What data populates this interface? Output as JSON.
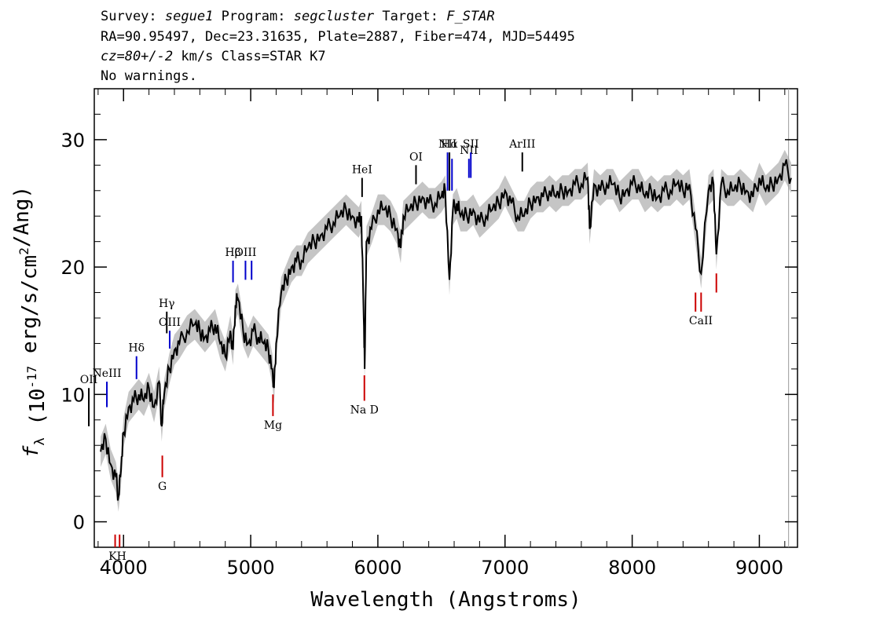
{
  "header": {
    "survey_label": "Survey:",
    "survey": "segue1",
    "program_label": "Program:",
    "program": "segcluster",
    "target_label": "Target:",
    "target": "F_STAR",
    "line2": "RA=90.95497, Dec=23.31635, Plate=2887, Fiber=474, MJD=54495",
    "cz": "cz=80+/-2",
    "cz_rest": " km/s Class=STAR K7",
    "line4": "No warnings."
  },
  "chart_data": {
    "type": "line",
    "xlabel": "Wavelength (Angstroms)",
    "ylabel": "f_λ (10^-17 erg/s/cm^2/Ang)",
    "xlim": [
      3770,
      9300
    ],
    "ylim": [
      -2,
      34
    ],
    "x_ticks": [
      4000,
      5000,
      6000,
      7000,
      8000,
      9000
    ],
    "y_ticks": [
      0,
      10,
      20,
      30
    ],
    "x": [
      3820,
      3860,
      3900,
      3940,
      3960,
      3980,
      4000,
      4040,
      4080,
      4120,
      4160,
      4200,
      4240,
      4280,
      4300,
      4320,
      4360,
      4400,
      4440,
      4500,
      4560,
      4600,
      4640,
      4680,
      4720,
      4760,
      4800,
      4840,
      4861,
      4880,
      4900,
      4940,
      4980,
      5020,
      5060,
      5100,
      5140,
      5170,
      5184,
      5200,
      5240,
      5280,
      5320,
      5360,
      5400,
      5450,
      5500,
      5550,
      5600,
      5650,
      5700,
      5750,
      5800,
      5850,
      5870,
      5889,
      5896,
      5910,
      5950,
      6000,
      6050,
      6100,
      6150,
      6180,
      6200,
      6250,
      6300,
      6350,
      6400,
      6450,
      6500,
      6530,
      6563,
      6590,
      6620,
      6650,
      6700,
      6750,
      6800,
      6850,
      6900,
      6950,
      7000,
      7050,
      7100,
      7150,
      7200,
      7250,
      7300,
      7350,
      7400,
      7450,
      7500,
      7550,
      7600,
      7650,
      7665,
      7700,
      7750,
      7800,
      7850,
      7900,
      7950,
      8000,
      8050,
      8100,
      8150,
      8200,
      8250,
      8300,
      8350,
      8400,
      8450,
      8498,
      8542,
      8600,
      8640,
      8662,
      8700,
      8750,
      8800,
      8850,
      8900,
      8950,
      9000,
      9050,
      9100,
      9150,
      9200,
      9250
    ],
    "y": [
      5.5,
      6.5,
      4.5,
      3.5,
      2.0,
      4.0,
      7.0,
      9.0,
      9.5,
      10.0,
      9.5,
      10.5,
      9.0,
      11.0,
      7.5,
      10.0,
      12.0,
      13.5,
      14.0,
      15.0,
      15.5,
      15.0,
      14.5,
      15.0,
      15.5,
      14.0,
      13.0,
      15.0,
      13.5,
      17.0,
      17.5,
      15.0,
      14.0,
      15.0,
      14.5,
      14.0,
      13.5,
      12.0,
      10.5,
      14.0,
      18.0,
      19.0,
      20.0,
      20.5,
      20.5,
      21.5,
      22.0,
      22.5,
      23.0,
      23.5,
      24.0,
      24.5,
      24.0,
      23.5,
      24.0,
      16.0,
      12.0,
      22.0,
      23.0,
      24.5,
      24.5,
      24.0,
      23.0,
      21.5,
      24.0,
      24.5,
      25.0,
      25.5,
      25.0,
      25.0,
      25.5,
      26.0,
      19.0,
      24.5,
      25.0,
      24.0,
      24.0,
      24.5,
      23.5,
      24.0,
      24.5,
      25.0,
      26.0,
      25.0,
      24.0,
      24.0,
      25.0,
      25.5,
      25.5,
      26.0,
      25.5,
      26.0,
      26.0,
      26.5,
      26.5,
      27.0,
      23.0,
      26.5,
      26.0,
      26.5,
      26.5,
      25.5,
      26.0,
      26.5,
      26.5,
      25.5,
      26.0,
      25.5,
      26.0,
      26.0,
      26.5,
      26.0,
      26.5,
      23.0,
      19.5,
      26.0,
      26.5,
      21.0,
      26.5,
      26.0,
      26.0,
      26.5,
      26.0,
      25.5,
      27.0,
      26.0,
      26.5,
      27.0,
      28.0,
      27.0
    ],
    "series_color": "#000000",
    "error_color": "#bbbbbb",
    "emission_lines": [
      {
        "label": "OII",
        "x": 3727,
        "y_top": 10.5,
        "y_bottom": 7.5,
        "color": "#000000"
      },
      {
        "label": "NeIII",
        "x": 3869,
        "y_top": 11.0,
        "y_bottom": 9.0,
        "color": "#0000cc"
      },
      {
        "label": "Hδ",
        "x": 4102,
        "y_top": 13.0,
        "y_bottom": 11.2,
        "color": "#0000cc"
      },
      {
        "label": "Hγ",
        "x": 4340,
        "y_top": 16.5,
        "y_bottom": 14.8,
        "color": "#000000"
      },
      {
        "label": "OIII",
        "x": 4363,
        "y_top": 15.0,
        "y_bottom": 13.6,
        "color": "#0000cc"
      },
      {
        "label": "Hβ",
        "x": 4861,
        "y_top": 20.5,
        "y_bottom": 18.8,
        "color": "#0000cc"
      },
      {
        "label": "OIII",
        "x": 4959,
        "y_top": 20.5,
        "y_bottom": 19.0,
        "color": "#0000cc"
      },
      {
        "label": "",
        "x": 5007,
        "y_top": 20.5,
        "y_bottom": 19.0,
        "color": "#0000cc"
      },
      {
        "label": "HeI",
        "x": 5876,
        "y_top": 27.0,
        "y_bottom": 25.5,
        "color": "#000000"
      },
      {
        "label": "OI",
        "x": 6300,
        "y_top": 28.0,
        "y_bottom": 26.5,
        "color": "#000000"
      },
      {
        "label": "NII",
        "x": 6548,
        "y_top": 29.0,
        "y_bottom": 26.0,
        "color": "#0000cc"
      },
      {
        "label": "Hα",
        "x": 6563,
        "y_top": 29.0,
        "y_bottom": 26.0,
        "color": "#000000"
      },
      {
        "label": "",
        "x": 6583,
        "y_top": 28.5,
        "y_bottom": 26.0,
        "color": "#0000cc"
      },
      {
        "label": "NII",
        "x": 6716,
        "y_top": 28.5,
        "y_bottom": 27.0,
        "color": "#0000cc"
      },
      {
        "label": "SII",
        "x": 6731,
        "y_top": 29.0,
        "y_bottom": 27.0,
        "color": "#0000cc"
      },
      {
        "label": "ArIII",
        "x": 7136,
        "y_top": 29.0,
        "y_bottom": 27.5,
        "color": "#000000"
      }
    ],
    "absorption_lines": [
      {
        "label": "KH",
        "x": 3934,
        "y_top": -1.0,
        "y_bottom": -2.0,
        "color": "#cc0000"
      },
      {
        "label": "",
        "x": 3969,
        "y_top": -1.0,
        "y_bottom": -2.0,
        "color": "#cc0000"
      },
      {
        "label": "G",
        "x": 4305,
        "y_top": 5.2,
        "y_bottom": 3.5,
        "color": "#cc0000"
      },
      {
        "label": "Mg",
        "x": 5175,
        "y_top": 10.0,
        "y_bottom": 8.3,
        "color": "#cc0000"
      },
      {
        "label": "Na D",
        "x": 5894,
        "y_top": 11.5,
        "y_bottom": 9.5,
        "color": "#cc0000"
      },
      {
        "label": "CaII",
        "x": 8498,
        "y_top": 18.0,
        "y_bottom": 16.5,
        "color": "#cc0000"
      },
      {
        "label": "",
        "x": 8542,
        "y_top": 18.0,
        "y_bottom": 16.5,
        "color": "#cc0000"
      },
      {
        "label": "",
        "x": 8662,
        "y_top": 19.5,
        "y_bottom": 18.0,
        "color": "#cc0000"
      }
    ]
  }
}
